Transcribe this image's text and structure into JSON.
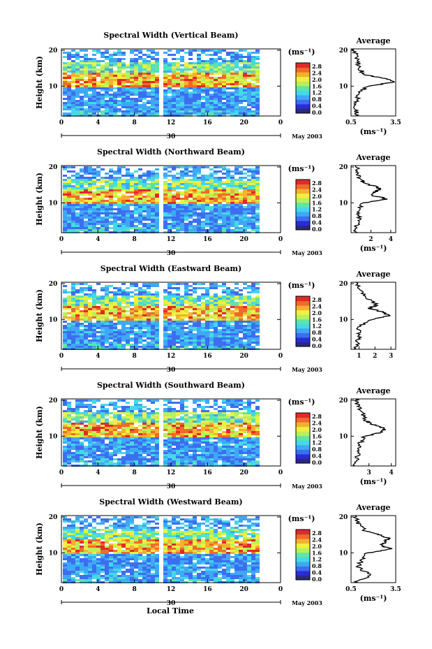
{
  "figure": {
    "x_axis_label": "Local Time",
    "date_label": "May 2003",
    "day_label": "30",
    "x_ticks": [
      "0",
      "4",
      "8",
      "12",
      "16",
      "20",
      "0"
    ],
    "y_label": "Height (km)",
    "y_ticks": [
      "20",
      "10"
    ],
    "colorbar_unit": "(ms⁻¹)",
    "colorbar_ticks": [
      "2.8",
      "2.4",
      "2.0",
      "1.6",
      "1.2",
      "0.8",
      "0.4",
      "0.0"
    ],
    "average_title": "Average",
    "average_unit": "(ms⁻¹)",
    "colors": {
      "colormap": [
        "#2a2a7a",
        "#2b2bd6",
        "#3c6ef0",
        "#3fa8f5",
        "#45d8e8",
        "#5ee6a6",
        "#b8f05a",
        "#f0f040",
        "#f5b030",
        "#f06a2a",
        "#e02a2a"
      ]
    }
  },
  "chart_data": [
    {
      "type": "heatmap",
      "title": "Spectral Width (Vertical Beam)",
      "xlabel": "Local Time",
      "ylabel": "Height (km)",
      "xlim": [
        0,
        24
      ],
      "ylim": [
        2,
        20
      ],
      "colorbar": {
        "label": "(ms⁻¹)",
        "range": [
          0,
          3.0
        ]
      },
      "data_gap_local_time": 10.5,
      "data_end_local_time": 21.2,
      "profile": {
        "title": "Average",
        "xlabel": "(ms⁻¹)",
        "x_ticks": [
          "0.5",
          "3.5"
        ],
        "xlim": [
          0.5,
          3.5
        ],
        "heights_km": [
          2,
          4,
          6,
          8,
          10,
          11,
          12,
          13,
          14,
          16,
          18,
          20
        ],
        "values": [
          0.9,
          0.8,
          0.9,
          1.0,
          1.6,
          3.3,
          3.0,
          1.5,
          1.2,
          1.0,
          0.8,
          0.7
        ]
      }
    },
    {
      "type": "heatmap",
      "title": "Spectral Width (Northward Beam)",
      "xlabel": "Local Time",
      "ylabel": "Height (km)",
      "xlim": [
        0,
        24
      ],
      "ylim": [
        2,
        20
      ],
      "colorbar": {
        "label": "(ms⁻¹)",
        "range": [
          0,
          3.0
        ]
      },
      "data_gap_local_time": 10.5,
      "data_end_local_time": 21.2,
      "profile": {
        "title": "Average",
        "xlabel": "(ms⁻¹)",
        "x_ticks": [
          "2",
          "4"
        ],
        "xlim": [
          0,
          4.5
        ],
        "heights_km": [
          2,
          4,
          6,
          8,
          10,
          11,
          12,
          13,
          14,
          15,
          16,
          18,
          20
        ],
        "values": [
          0.5,
          0.6,
          0.8,
          0.7,
          1.2,
          3.8,
          2.0,
          2.5,
          2.8,
          1.8,
          1.0,
          0.7,
          0.5
        ]
      }
    },
    {
      "type": "heatmap",
      "title": "Spectral Width (Eastward Beam)",
      "xlabel": "Local Time",
      "ylabel": "Height (km)",
      "xlim": [
        0,
        24
      ],
      "ylim": [
        2,
        20
      ],
      "colorbar": {
        "label": "(ms⁻¹)",
        "range": [
          0,
          3.0
        ]
      },
      "data_gap_local_time": 10.5,
      "data_end_local_time": 21.2,
      "profile": {
        "title": "Average",
        "xlabel": "",
        "x_ticks": [
          "1",
          "2",
          "3"
        ],
        "xlim": [
          0.5,
          3.3
        ],
        "heights_km": [
          2,
          4,
          6,
          8,
          10,
          11,
          12,
          13,
          14,
          16,
          18,
          20
        ],
        "values": [
          0.8,
          0.9,
          1.0,
          1.0,
          1.8,
          2.9,
          2.5,
          1.7,
          2.1,
          1.5,
          1.0,
          0.8
        ]
      }
    },
    {
      "type": "heatmap",
      "title": "Spectral Width (Southward Beam)",
      "xlabel": "Local Time",
      "ylabel": "Height (km)",
      "xlim": [
        0,
        24
      ],
      "ylim": [
        2,
        20
      ],
      "colorbar": {
        "label": "(ms⁻¹)",
        "range": [
          0,
          3.0
        ]
      },
      "data_gap_local_time": 10.5,
      "data_end_local_time": 21.2,
      "profile": {
        "title": "Average",
        "xlabel": "(ms⁻¹)",
        "x_ticks": [
          "3",
          "4"
        ],
        "xlim": [
          2.2,
          4.2
        ],
        "heights_km": [
          2,
          4,
          6,
          8,
          10,
          11,
          12,
          13,
          14,
          16,
          18,
          20
        ],
        "values": [
          2.4,
          2.5,
          2.5,
          2.6,
          2.8,
          3.6,
          3.7,
          3.2,
          2.9,
          2.7,
          2.5,
          2.4
        ]
      }
    },
    {
      "type": "heatmap",
      "title": "Spectral Width (Westward Beam)",
      "xlabel": "Local Time",
      "ylabel": "Height (km)",
      "xlim": [
        0,
        24
      ],
      "ylim": [
        2,
        20
      ],
      "colorbar": {
        "label": "(ms⁻¹)",
        "range": [
          0,
          3.0
        ]
      },
      "data_gap_local_time": 10.5,
      "data_end_local_time": 21.2,
      "profile": {
        "title": "Average",
        "xlabel": "(ms⁻¹)",
        "x_ticks": [
          "0.5",
          "3.5"
        ],
        "xlim": [
          0.5,
          3.5
        ],
        "heights_km": [
          2,
          4,
          6,
          8,
          10,
          11,
          12,
          13,
          14,
          15,
          16,
          18,
          20
        ],
        "values": [
          0.8,
          1.8,
          1.0,
          1.2,
          1.6,
          3.2,
          2.6,
          2.8,
          3.0,
          2.2,
          1.4,
          1.0,
          0.8
        ]
      }
    }
  ]
}
